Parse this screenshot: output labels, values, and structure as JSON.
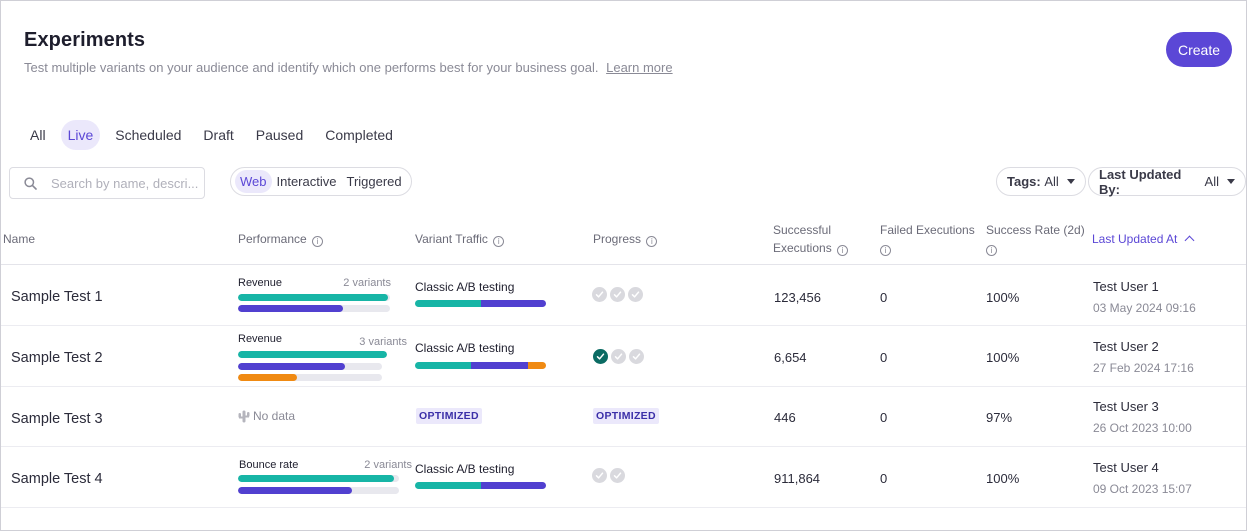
{
  "header": {
    "title": "Experiments",
    "subtitle": "Test multiple variants on your audience and identify which one performs best for your business goal.",
    "learn_more": "Learn more",
    "create_label": "Create"
  },
  "tabs": [
    "All",
    "Live",
    "Scheduled",
    "Draft",
    "Paused",
    "Completed"
  ],
  "active_tab": "Live",
  "search": {
    "placeholder": "Search by name, descri..."
  },
  "segments": [
    "Web",
    "Interactive",
    "Triggered"
  ],
  "active_segment": "Web",
  "filters": {
    "tags_label": "Tags:",
    "tags_value": "All",
    "updated_label": "Last Updated By:",
    "updated_value": "All"
  },
  "columns": {
    "name": "Name",
    "performance": "Performance",
    "variant_traffic": "Variant Traffic",
    "progress": "Progress",
    "successful_1": "Successful",
    "successful_2": "Executions",
    "failed": "Failed Executions",
    "success_rate": "Success Rate (2d)",
    "last_updated": "Last Updated At"
  },
  "colors": {
    "accent": "#5b47d6",
    "teal": "#17b5a6",
    "purple": "#5140d0",
    "orange": "#f08a12",
    "done": "#0b6b63"
  },
  "rows": [
    {
      "name": "Sample Test 1",
      "metric": "Revenue",
      "variants": "2 variants",
      "perf_bars": [
        {
          "fill": 0.99,
          "color": "teal"
        },
        {
          "fill": 0.69,
          "color": "purple"
        }
      ],
      "traffic_label": "Classic A/B testing",
      "traffic_split": [
        {
          "share": 0.5,
          "color": "teal"
        },
        {
          "share": 0.5,
          "color": "purple"
        }
      ],
      "progress": [
        "pending",
        "pending",
        "pending"
      ],
      "successful": "123,456",
      "failed": "0",
      "rate": "100%",
      "user": "Test User 1",
      "date": "03 May 2024 09:16"
    },
    {
      "name": "Sample Test 2",
      "metric": "Revenue",
      "variants": "3 variants",
      "perf_bars": [
        {
          "fill": 1.0,
          "color": "teal"
        },
        {
          "fill": 0.74,
          "color": "purple"
        },
        {
          "fill": 0.41,
          "color": "orange"
        }
      ],
      "traffic_label": "Classic A/B testing",
      "traffic_split": [
        {
          "share": 0.43,
          "color": "teal"
        },
        {
          "share": 0.43,
          "color": "purple"
        },
        {
          "share": 0.14,
          "color": "orange"
        }
      ],
      "progress": [
        "done",
        "pending",
        "pending"
      ],
      "successful": "6,654",
      "failed": "0",
      "rate": "100%",
      "user": "Test User 2",
      "date": "27 Feb 2024 17:16"
    },
    {
      "name": "Sample Test 3",
      "no_data": "No data",
      "traffic_badge": "OPTIMIZED",
      "progress_badge": "OPTIMIZED",
      "successful": "446",
      "failed": "0",
      "rate": "97%",
      "user": "Test User 3",
      "date": "26 Oct 2023 10:00"
    },
    {
      "name": "Sample Test 4",
      "metric": "Bounce rate",
      "variants": "2 variants",
      "perf_bars": [
        {
          "fill": 0.97,
          "color": "teal"
        },
        {
          "fill": 0.71,
          "color": "purple"
        }
      ],
      "traffic_label": "Classic A/B testing",
      "traffic_split": [
        {
          "share": 0.5,
          "color": "teal"
        },
        {
          "share": 0.5,
          "color": "purple"
        }
      ],
      "progress": [
        "pending",
        "pending"
      ],
      "successful": "911,864",
      "failed": "0",
      "rate": "100%",
      "user": "Test User 4",
      "date": "09 Oct 2023 15:07"
    }
  ]
}
